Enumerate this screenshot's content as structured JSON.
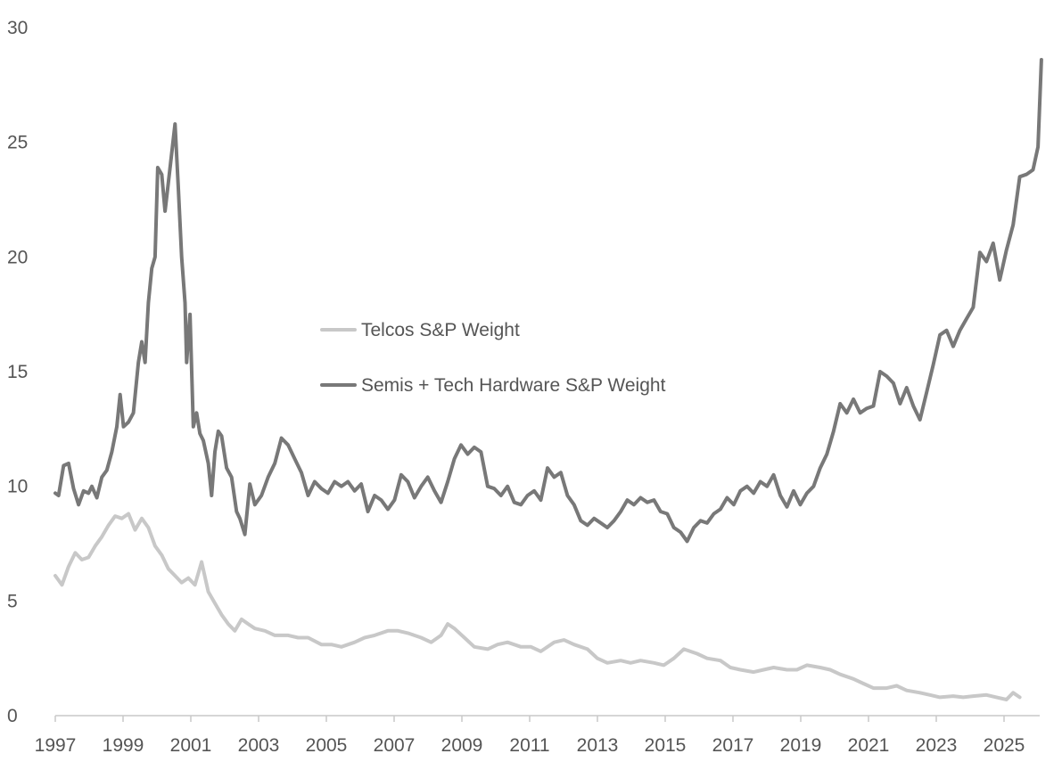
{
  "chart_data": {
    "type": "line",
    "title": "",
    "xlabel": "",
    "ylabel": "",
    "xlim": [
      1997,
      2026
    ],
    "ylim": [
      0,
      30
    ],
    "x_ticks": [
      "1997",
      "1999",
      "2001",
      "2003",
      "2005",
      "2007",
      "2009",
      "2011",
      "2013",
      "2015",
      "2017",
      "2019",
      "2021",
      "2023",
      "2025"
    ],
    "y_ticks": [
      "0",
      "5",
      "10",
      "15",
      "20",
      "25",
      "30"
    ],
    "grid": false,
    "legend_position": "center-left",
    "series": [
      {
        "name": "Telcos S&P Weight",
        "color": "#c8c8c8",
        "points": [
          [
            1997.0,
            6.1
          ],
          [
            1997.2,
            5.7
          ],
          [
            1997.4,
            6.5
          ],
          [
            1997.6,
            7.1
          ],
          [
            1997.8,
            6.8
          ],
          [
            1998.0,
            6.9
          ],
          [
            1998.2,
            7.4
          ],
          [
            1998.4,
            7.8
          ],
          [
            1998.6,
            8.3
          ],
          [
            1998.8,
            8.7
          ],
          [
            1999.0,
            8.6
          ],
          [
            1999.2,
            8.8
          ],
          [
            1999.4,
            8.1
          ],
          [
            1999.6,
            8.6
          ],
          [
            1999.8,
            8.2
          ],
          [
            2000.0,
            7.4
          ],
          [
            2000.2,
            7.0
          ],
          [
            2000.4,
            6.4
          ],
          [
            2000.6,
            6.1
          ],
          [
            2000.8,
            5.8
          ],
          [
            2001.0,
            6.0
          ],
          [
            2001.2,
            5.7
          ],
          [
            2001.4,
            6.7
          ],
          [
            2001.6,
            5.4
          ],
          [
            2001.8,
            4.9
          ],
          [
            2002.0,
            4.4
          ],
          [
            2002.2,
            4.0
          ],
          [
            2002.4,
            3.7
          ],
          [
            2002.6,
            4.2
          ],
          [
            2002.8,
            4.0
          ],
          [
            2003.0,
            3.8
          ],
          [
            2003.3,
            3.7
          ],
          [
            2003.6,
            3.5
          ],
          [
            2004.0,
            3.5
          ],
          [
            2004.3,
            3.4
          ],
          [
            2004.6,
            3.4
          ],
          [
            2005.0,
            3.1
          ],
          [
            2005.3,
            3.1
          ],
          [
            2005.6,
            3.0
          ],
          [
            2006.0,
            3.2
          ],
          [
            2006.3,
            3.4
          ],
          [
            2006.6,
            3.5
          ],
          [
            2007.0,
            3.7
          ],
          [
            2007.3,
            3.7
          ],
          [
            2007.6,
            3.6
          ],
          [
            2008.0,
            3.4
          ],
          [
            2008.3,
            3.2
          ],
          [
            2008.6,
            3.5
          ],
          [
            2008.8,
            4.0
          ],
          [
            2009.0,
            3.8
          ],
          [
            2009.3,
            3.4
          ],
          [
            2009.6,
            3.0
          ],
          [
            2010.0,
            2.9
          ],
          [
            2010.3,
            3.1
          ],
          [
            2010.6,
            3.2
          ],
          [
            2011.0,
            3.0
          ],
          [
            2011.3,
            3.0
          ],
          [
            2011.6,
            2.8
          ],
          [
            2012.0,
            3.2
          ],
          [
            2012.3,
            3.3
          ],
          [
            2012.6,
            3.1
          ],
          [
            2013.0,
            2.9
          ],
          [
            2013.3,
            2.5
          ],
          [
            2013.6,
            2.3
          ],
          [
            2014.0,
            2.4
          ],
          [
            2014.3,
            2.3
          ],
          [
            2014.6,
            2.4
          ],
          [
            2015.0,
            2.3
          ],
          [
            2015.3,
            2.2
          ],
          [
            2015.6,
            2.5
          ],
          [
            2015.9,
            2.9
          ],
          [
            2016.3,
            2.7
          ],
          [
            2016.6,
            2.5
          ],
          [
            2017.0,
            2.4
          ],
          [
            2017.3,
            2.1
          ],
          [
            2017.6,
            2.0
          ],
          [
            2018.0,
            1.9
          ],
          [
            2018.3,
            2.0
          ],
          [
            2018.6,
            2.1
          ],
          [
            2019.0,
            2.0
          ],
          [
            2019.3,
            2.0
          ],
          [
            2019.6,
            2.2
          ],
          [
            2020.0,
            2.1
          ],
          [
            2020.3,
            2.0
          ],
          [
            2020.6,
            1.8
          ],
          [
            2021.0,
            1.6
          ],
          [
            2021.3,
            1.4
          ],
          [
            2021.6,
            1.2
          ],
          [
            2022.0,
            1.2
          ],
          [
            2022.3,
            1.3
          ],
          [
            2022.6,
            1.1
          ],
          [
            2023.0,
            1.0
          ],
          [
            2023.3,
            0.9
          ],
          [
            2023.6,
            0.8
          ],
          [
            2024.0,
            0.85
          ],
          [
            2024.3,
            0.8
          ],
          [
            2024.6,
            0.85
          ],
          [
            2025.0,
            0.9
          ],
          [
            2025.3,
            0.8
          ],
          [
            2025.6,
            0.7
          ],
          [
            2025.8,
            1.0
          ],
          [
            2026.0,
            0.8
          ]
        ]
      },
      {
        "name": "Semis + Tech Hardware S&P Weight",
        "color": "#787878",
        "points": [
          [
            1997.0,
            9.7
          ],
          [
            1997.1,
            9.6
          ],
          [
            1997.25,
            10.9
          ],
          [
            1997.4,
            11.0
          ],
          [
            1997.55,
            9.9
          ],
          [
            1997.7,
            9.2
          ],
          [
            1997.85,
            9.8
          ],
          [
            1998.0,
            9.7
          ],
          [
            1998.1,
            10.0
          ],
          [
            1998.25,
            9.5
          ],
          [
            1998.4,
            10.4
          ],
          [
            1998.55,
            10.7
          ],
          [
            1998.7,
            11.5
          ],
          [
            1998.85,
            12.6
          ],
          [
            1998.95,
            14.0
          ],
          [
            1999.05,
            12.6
          ],
          [
            1999.2,
            12.8
          ],
          [
            1999.35,
            13.2
          ],
          [
            1999.5,
            15.4
          ],
          [
            1999.6,
            16.3
          ],
          [
            1999.7,
            15.4
          ],
          [
            1999.8,
            18.0
          ],
          [
            1999.9,
            19.5
          ],
          [
            2000.0,
            20.0
          ],
          [
            2000.08,
            23.9
          ],
          [
            2000.2,
            23.6
          ],
          [
            2000.3,
            22.0
          ],
          [
            2000.38,
            23.0
          ],
          [
            2000.5,
            24.5
          ],
          [
            2000.6,
            25.8
          ],
          [
            2000.7,
            23.0
          ],
          [
            2000.8,
            20.0
          ],
          [
            2000.9,
            18.0
          ],
          [
            2000.95,
            15.4
          ],
          [
            2001.05,
            17.5
          ],
          [
            2001.15,
            12.6
          ],
          [
            2001.25,
            13.2
          ],
          [
            2001.35,
            12.3
          ],
          [
            2001.45,
            12.0
          ],
          [
            2001.6,
            11.0
          ],
          [
            2001.7,
            9.6
          ],
          [
            2001.8,
            11.5
          ],
          [
            2001.9,
            12.4
          ],
          [
            2002.0,
            12.2
          ],
          [
            2002.15,
            10.8
          ],
          [
            2002.3,
            10.4
          ],
          [
            2002.45,
            8.9
          ],
          [
            2002.55,
            8.6
          ],
          [
            2002.7,
            7.9
          ],
          [
            2002.85,
            10.1
          ],
          [
            2003.0,
            9.2
          ],
          [
            2003.2,
            9.6
          ],
          [
            2003.4,
            10.4
          ],
          [
            2003.6,
            11.0
          ],
          [
            2003.8,
            12.1
          ],
          [
            2004.0,
            11.8
          ],
          [
            2004.2,
            11.2
          ],
          [
            2004.4,
            10.6
          ],
          [
            2004.6,
            9.6
          ],
          [
            2004.8,
            10.2
          ],
          [
            2005.0,
            9.9
          ],
          [
            2005.2,
            9.7
          ],
          [
            2005.4,
            10.2
          ],
          [
            2005.6,
            10.0
          ],
          [
            2005.8,
            10.2
          ],
          [
            2006.0,
            9.8
          ],
          [
            2006.2,
            10.1
          ],
          [
            2006.4,
            8.9
          ],
          [
            2006.6,
            9.6
          ],
          [
            2006.8,
            9.4
          ],
          [
            2007.0,
            9.0
          ],
          [
            2007.2,
            9.4
          ],
          [
            2007.4,
            10.5
          ],
          [
            2007.6,
            10.2
          ],
          [
            2007.8,
            9.5
          ],
          [
            2008.0,
            10.0
          ],
          [
            2008.2,
            10.4
          ],
          [
            2008.4,
            9.8
          ],
          [
            2008.6,
            9.3
          ],
          [
            2008.8,
            10.2
          ],
          [
            2009.0,
            11.2
          ],
          [
            2009.2,
            11.8
          ],
          [
            2009.4,
            11.4
          ],
          [
            2009.6,
            11.7
          ],
          [
            2009.8,
            11.5
          ],
          [
            2010.0,
            10.0
          ],
          [
            2010.2,
            9.9
          ],
          [
            2010.4,
            9.6
          ],
          [
            2010.6,
            10.0
          ],
          [
            2010.8,
            9.3
          ],
          [
            2011.0,
            9.2
          ],
          [
            2011.2,
            9.6
          ],
          [
            2011.4,
            9.8
          ],
          [
            2011.6,
            9.4
          ],
          [
            2011.8,
            10.8
          ],
          [
            2012.0,
            10.4
          ],
          [
            2012.2,
            10.6
          ],
          [
            2012.4,
            9.6
          ],
          [
            2012.6,
            9.2
          ],
          [
            2012.8,
            8.5
          ],
          [
            2013.0,
            8.3
          ],
          [
            2013.2,
            8.6
          ],
          [
            2013.4,
            8.4
          ],
          [
            2013.6,
            8.2
          ],
          [
            2013.8,
            8.5
          ],
          [
            2014.0,
            8.9
          ],
          [
            2014.2,
            9.4
          ],
          [
            2014.4,
            9.2
          ],
          [
            2014.6,
            9.5
          ],
          [
            2014.8,
            9.3
          ],
          [
            2015.0,
            9.4
          ],
          [
            2015.2,
            8.9
          ],
          [
            2015.4,
            8.8
          ],
          [
            2015.6,
            8.2
          ],
          [
            2015.8,
            8.0
          ],
          [
            2016.0,
            7.6
          ],
          [
            2016.2,
            8.2
          ],
          [
            2016.4,
            8.5
          ],
          [
            2016.6,
            8.4
          ],
          [
            2016.8,
            8.8
          ],
          [
            2017.0,
            9.0
          ],
          [
            2017.2,
            9.5
          ],
          [
            2017.4,
            9.2
          ],
          [
            2017.6,
            9.8
          ],
          [
            2017.8,
            10.0
          ],
          [
            2018.0,
            9.7
          ],
          [
            2018.2,
            10.2
          ],
          [
            2018.4,
            10.0
          ],
          [
            2018.6,
            10.5
          ],
          [
            2018.8,
            9.6
          ],
          [
            2019.0,
            9.1
          ],
          [
            2019.2,
            9.8
          ],
          [
            2019.4,
            9.2
          ],
          [
            2019.6,
            9.7
          ],
          [
            2019.8,
            10.0
          ],
          [
            2020.0,
            10.8
          ],
          [
            2020.2,
            11.4
          ],
          [
            2020.4,
            12.4
          ],
          [
            2020.6,
            13.6
          ],
          [
            2020.8,
            13.2
          ],
          [
            2021.0,
            13.8
          ],
          [
            2021.2,
            13.2
          ],
          [
            2021.4,
            13.4
          ],
          [
            2021.6,
            13.5
          ],
          [
            2021.8,
            15.0
          ],
          [
            2022.0,
            14.8
          ],
          [
            2022.2,
            14.5
          ],
          [
            2022.4,
            13.6
          ],
          [
            2022.6,
            14.3
          ],
          [
            2022.8,
            13.5
          ],
          [
            2023.0,
            12.9
          ],
          [
            2023.2,
            14.1
          ],
          [
            2023.4,
            15.3
          ],
          [
            2023.6,
            16.6
          ],
          [
            2023.8,
            16.8
          ],
          [
            2024.0,
            16.1
          ],
          [
            2024.2,
            16.8
          ],
          [
            2024.4,
            17.3
          ],
          [
            2024.6,
            17.8
          ],
          [
            2024.8,
            20.2
          ],
          [
            2025.0,
            19.8
          ],
          [
            2025.2,
            20.6
          ],
          [
            2025.4,
            19.0
          ],
          [
            2025.6,
            20.3
          ],
          [
            2025.8,
            21.4
          ],
          [
            2026.0,
            23.5
          ],
          [
            2026.2,
            23.6
          ],
          [
            2026.4,
            23.8
          ],
          [
            2026.55,
            24.8
          ],
          [
            2026.65,
            28.6
          ]
        ]
      }
    ]
  }
}
